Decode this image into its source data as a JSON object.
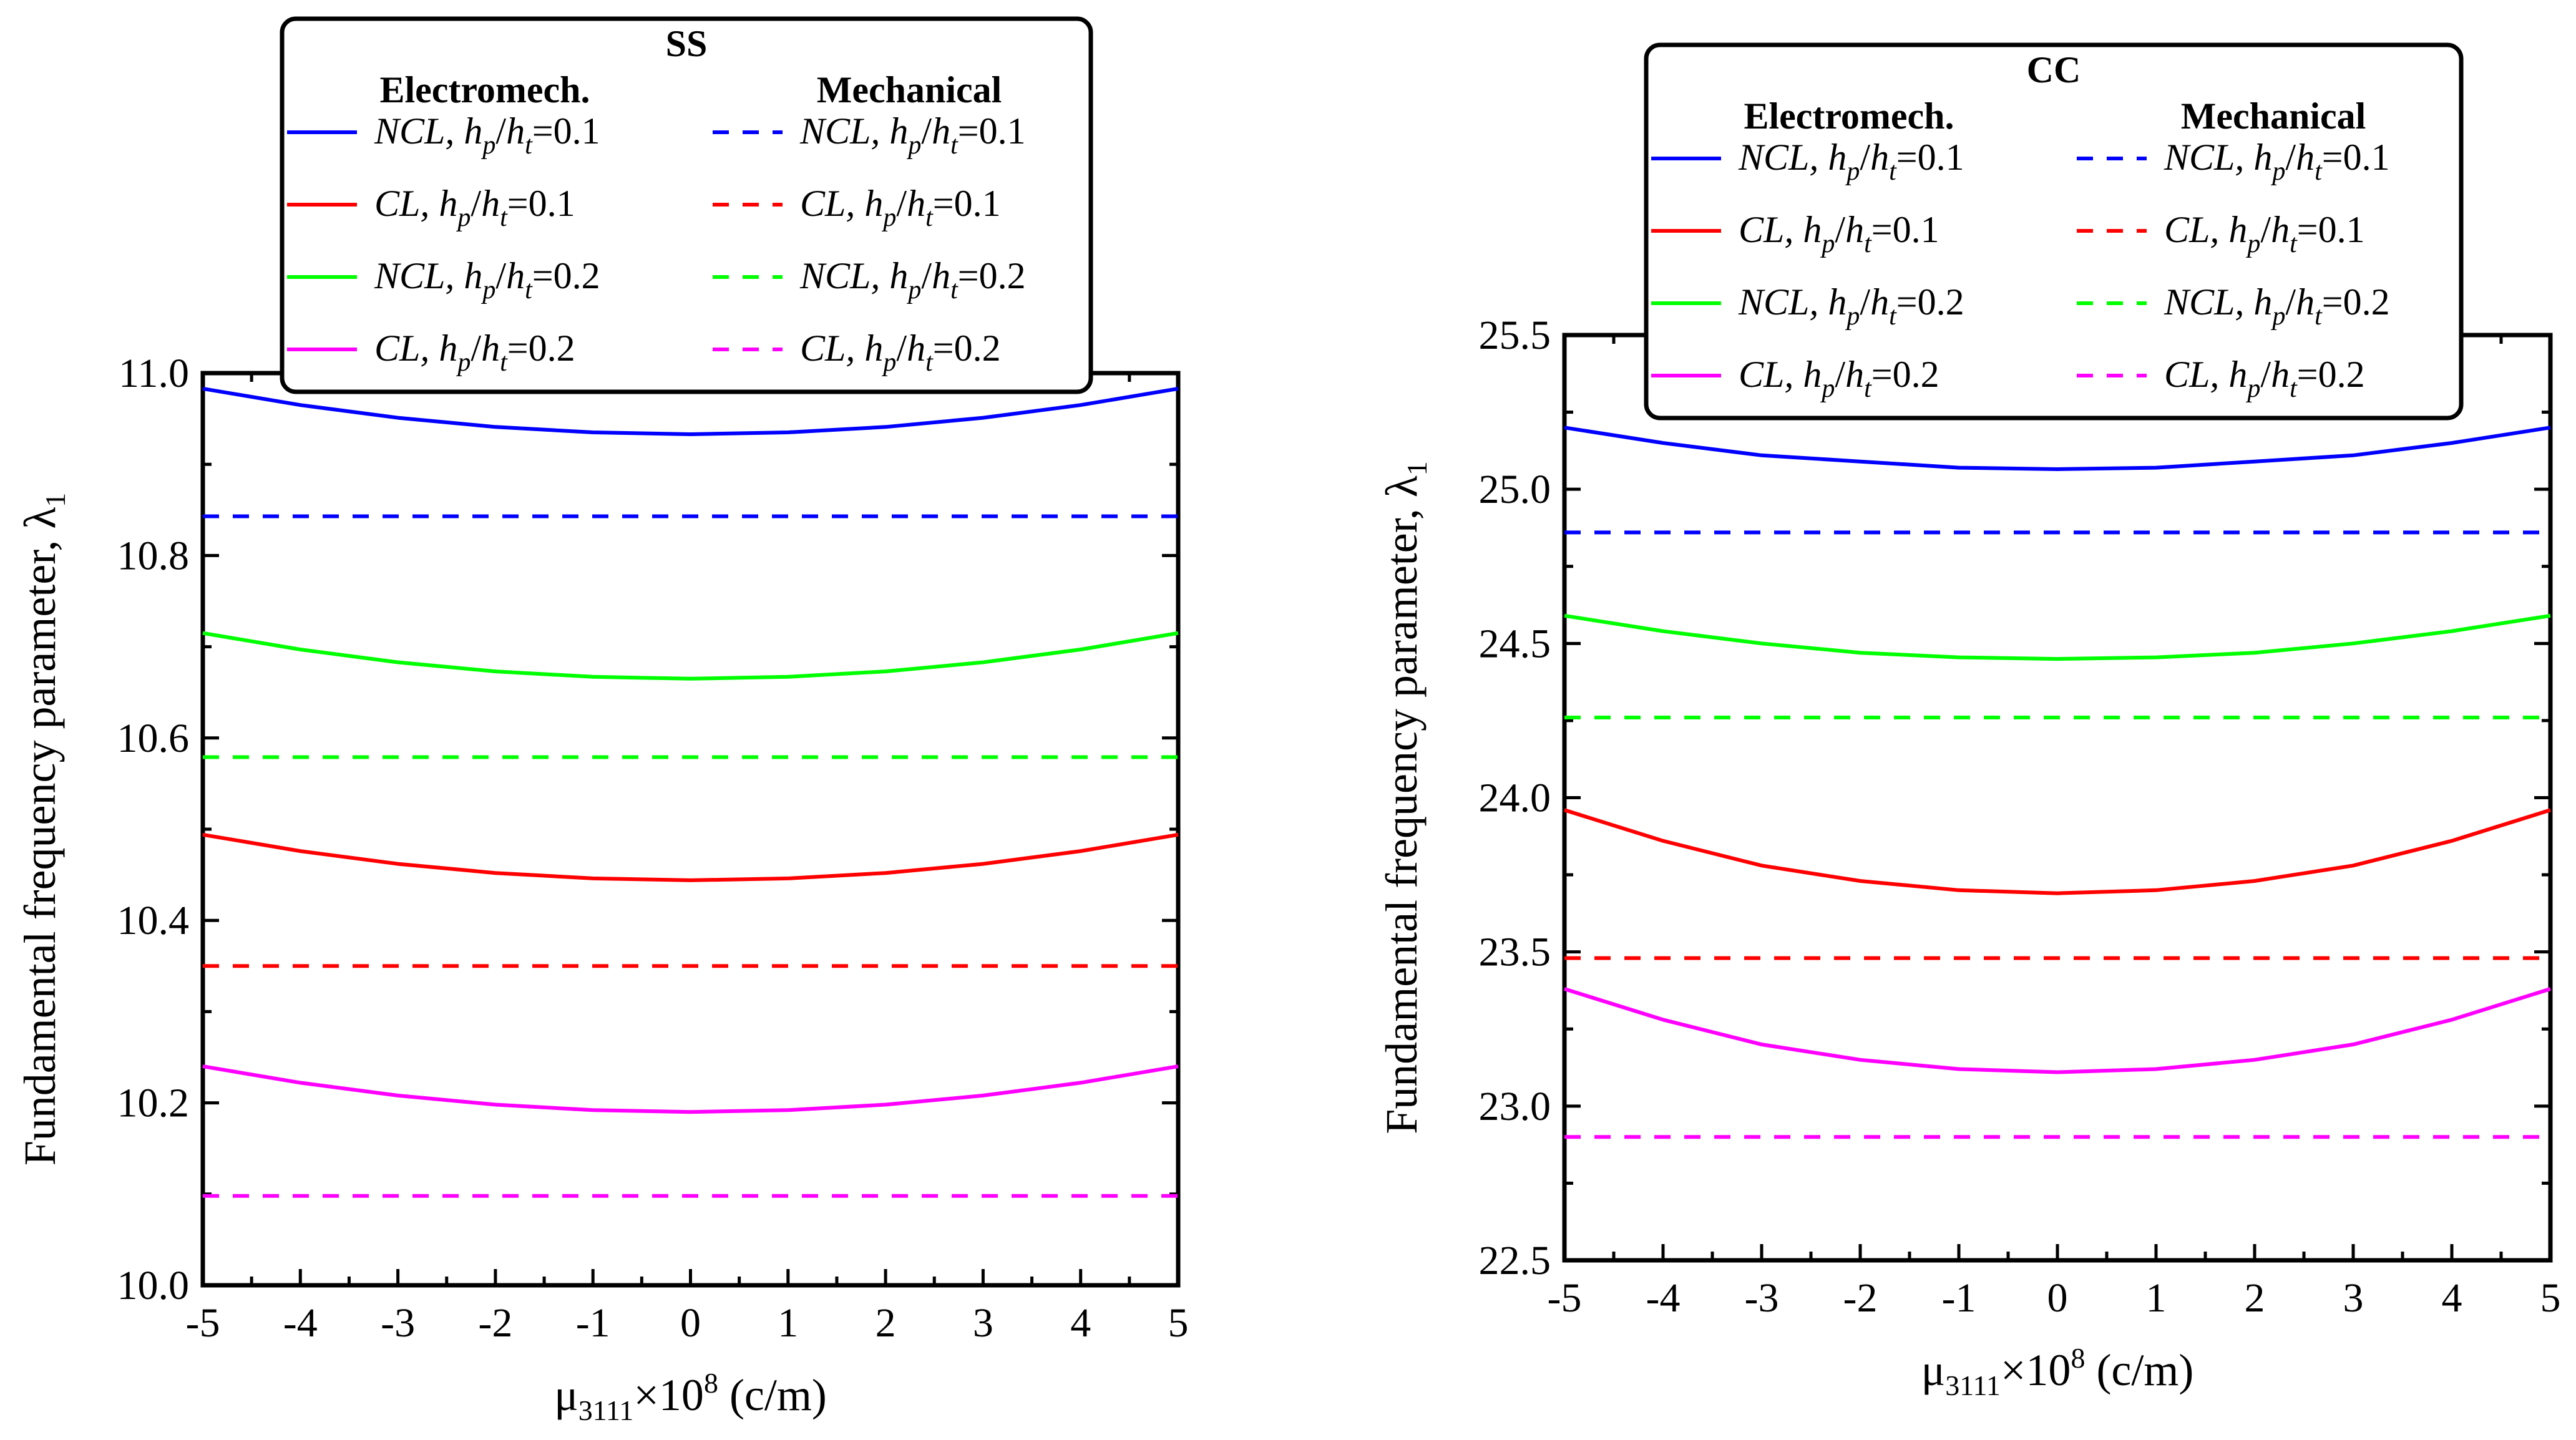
{
  "chart_data": [
    {
      "type": "line",
      "legend_title": "SS",
      "legend_headers": {
        "left": "Electromech.",
        "right": "Mechanical"
      },
      "xlabel": {
        "base": "μ",
        "sub": "3111",
        "mid": "×10",
        "sup": "8",
        "unit": " (c/m)"
      },
      "ylabel": {
        "main": "Fundamental frequency parameter, λ",
        "sub": "1"
      },
      "xlim": [
        -5,
        5
      ],
      "ylim": [
        10.0,
        11.0
      ],
      "xticks": [
        "-5",
        "-4",
        "-3",
        "-2",
        "-1",
        "0",
        "1",
        "2",
        "3",
        "4",
        "5"
      ],
      "yticks": [
        "10.0",
        "10.2",
        "10.4",
        "10.6",
        "10.8",
        "11.0"
      ],
      "x": [
        -5,
        -4,
        -3,
        -2,
        -1,
        0,
        1,
        2,
        3,
        4,
        5
      ],
      "series": [
        {
          "name": "NCL, hp/ht=0.1 (Electromech.)",
          "model": "NCL",
          "ratio": "0.1",
          "kind": "Electromech.",
          "color": "#0000ff",
          "dash": "solid",
          "values": [
            10.983,
            10.965,
            10.951,
            10.941,
            10.935,
            10.933,
            10.935,
            10.941,
            10.951,
            10.965,
            10.983
          ]
        },
        {
          "name": "CL, hp/ht=0.1 (Electromech.)",
          "model": "CL",
          "ratio": "0.1",
          "kind": "Electromech.",
          "color": "#ff0000",
          "dash": "solid",
          "values": [
            10.494,
            10.476,
            10.462,
            10.452,
            10.446,
            10.444,
            10.446,
            10.452,
            10.462,
            10.476,
            10.494
          ]
        },
        {
          "name": "NCL, hp/ht=0.2 (Electromech.)",
          "model": "NCL",
          "ratio": "0.2",
          "kind": "Electromech.",
          "color": "#00ff00",
          "dash": "solid",
          "values": [
            10.715,
            10.697,
            10.683,
            10.673,
            10.667,
            10.665,
            10.667,
            10.673,
            10.683,
            10.697,
            10.715
          ]
        },
        {
          "name": "CL, hp/ht=0.2 (Electromech.)",
          "model": "CL",
          "ratio": "0.2",
          "kind": "Electromech.",
          "color": "#ff00ff",
          "dash": "solid",
          "values": [
            10.24,
            10.222,
            10.208,
            10.198,
            10.192,
            10.19,
            10.192,
            10.198,
            10.208,
            10.222,
            10.24
          ]
        },
        {
          "name": "NCL, hp/ht=0.1 (Mechanical)",
          "model": "NCL",
          "ratio": "0.1",
          "kind": "Mechanical",
          "color": "#0000ff",
          "dash": "dashed",
          "values": [
            10.843,
            10.843,
            10.843,
            10.843,
            10.843,
            10.843,
            10.843,
            10.843,
            10.843,
            10.843,
            10.843
          ]
        },
        {
          "name": "CL, hp/ht=0.1 (Mechanical)",
          "model": "CL",
          "ratio": "0.1",
          "kind": "Mechanical",
          "color": "#ff0000",
          "dash": "dashed",
          "values": [
            10.35,
            10.35,
            10.35,
            10.35,
            10.35,
            10.35,
            10.35,
            10.35,
            10.35,
            10.35,
            10.35
          ]
        },
        {
          "name": "NCL, hp/ht=0.2 (Mechanical)",
          "model": "NCL",
          "ratio": "0.2",
          "kind": "Mechanical",
          "color": "#00ff00",
          "dash": "dashed",
          "values": [
            10.579,
            10.579,
            10.579,
            10.579,
            10.579,
            10.579,
            10.579,
            10.579,
            10.579,
            10.579,
            10.579
          ]
        },
        {
          "name": "CL, hp/ht=0.2 (Mechanical)",
          "model": "CL",
          "ratio": "0.2",
          "kind": "Mechanical",
          "color": "#ff00ff",
          "dash": "dashed",
          "values": [
            10.098,
            10.098,
            10.098,
            10.098,
            10.098,
            10.098,
            10.098,
            10.098,
            10.098,
            10.098,
            10.098
          ]
        }
      ]
    },
    {
      "type": "line",
      "legend_title": "CC",
      "legend_headers": {
        "left": "Electromech.",
        "right": "Mechanical"
      },
      "xlabel": {
        "base": "μ",
        "sub": "3111",
        "mid": "×10",
        "sup": "8",
        "unit": " (c/m)"
      },
      "ylabel": {
        "main": "Fundamental frequency parameter, λ",
        "sub": "1"
      },
      "xlim": [
        -5,
        5
      ],
      "ylim": [
        22.5,
        25.5
      ],
      "xticks": [
        "-5",
        "-4",
        "-3",
        "-2",
        "-1",
        "0",
        "1",
        "2",
        "3",
        "4",
        "5"
      ],
      "yticks": [
        "22.5",
        "23.0",
        "23.5",
        "24.0",
        "24.5",
        "25.0",
        "25.5"
      ],
      "x": [
        -5,
        -4,
        -3,
        -2,
        -1,
        0,
        1,
        2,
        3,
        4,
        5
      ],
      "series": [
        {
          "name": "NCL, hp/ht=0.1 (Electromech.)",
          "model": "NCL",
          "ratio": "0.1",
          "kind": "Electromech.",
          "color": "#0000ff",
          "dash": "solid",
          "values": [
            25.2,
            25.15,
            25.11,
            25.09,
            25.07,
            25.065,
            25.07,
            25.09,
            25.11,
            25.15,
            25.2
          ]
        },
        {
          "name": "CL, hp/ht=0.1 (Electromech.)",
          "model": "CL",
          "ratio": "0.1",
          "kind": "Electromech.",
          "color": "#ff0000",
          "dash": "solid",
          "values": [
            23.96,
            23.86,
            23.78,
            23.73,
            23.7,
            23.69,
            23.7,
            23.73,
            23.78,
            23.86,
            23.96
          ]
        },
        {
          "name": "NCL, hp/ht=0.2 (Electromech.)",
          "model": "NCL",
          "ratio": "0.2",
          "kind": "Electromech.",
          "color": "#00ff00",
          "dash": "solid",
          "values": [
            24.59,
            24.54,
            24.5,
            24.47,
            24.455,
            24.45,
            24.455,
            24.47,
            24.5,
            24.54,
            24.59
          ]
        },
        {
          "name": "CL, hp/ht=0.2 (Electromech.)",
          "model": "CL",
          "ratio": "0.2",
          "kind": "Electromech.",
          "color": "#ff00ff",
          "dash": "solid",
          "values": [
            23.38,
            23.28,
            23.2,
            23.15,
            23.12,
            23.11,
            23.12,
            23.15,
            23.2,
            23.28,
            23.38
          ]
        },
        {
          "name": "NCL, hp/ht=0.1 (Mechanical)",
          "model": "NCL",
          "ratio": "0.1",
          "kind": "Mechanical",
          "color": "#0000ff",
          "dash": "dashed",
          "values": [
            24.86,
            24.86,
            24.86,
            24.86,
            24.86,
            24.86,
            24.86,
            24.86,
            24.86,
            24.86,
            24.86
          ]
        },
        {
          "name": "CL, hp/ht=0.1 (Mechanical)",
          "model": "CL",
          "ratio": "0.1",
          "kind": "Mechanical",
          "color": "#ff0000",
          "dash": "dashed",
          "values": [
            23.48,
            23.48,
            23.48,
            23.48,
            23.48,
            23.48,
            23.48,
            23.48,
            23.48,
            23.48,
            23.48
          ]
        },
        {
          "name": "NCL, hp/ht=0.2 (Mechanical)",
          "model": "NCL",
          "ratio": "0.2",
          "kind": "Mechanical",
          "color": "#00ff00",
          "dash": "dashed",
          "values": [
            24.26,
            24.26,
            24.26,
            24.26,
            24.26,
            24.26,
            24.26,
            24.26,
            24.26,
            24.26,
            24.26
          ]
        },
        {
          "name": "CL, hp/ht=0.2 (Mechanical)",
          "model": "CL",
          "ratio": "0.2",
          "kind": "Mechanical",
          "color": "#ff00ff",
          "dash": "dashed",
          "values": [
            22.9,
            22.9,
            22.9,
            22.9,
            22.9,
            22.9,
            22.9,
            22.9,
            22.9,
            22.9,
            22.9
          ]
        }
      ]
    }
  ]
}
